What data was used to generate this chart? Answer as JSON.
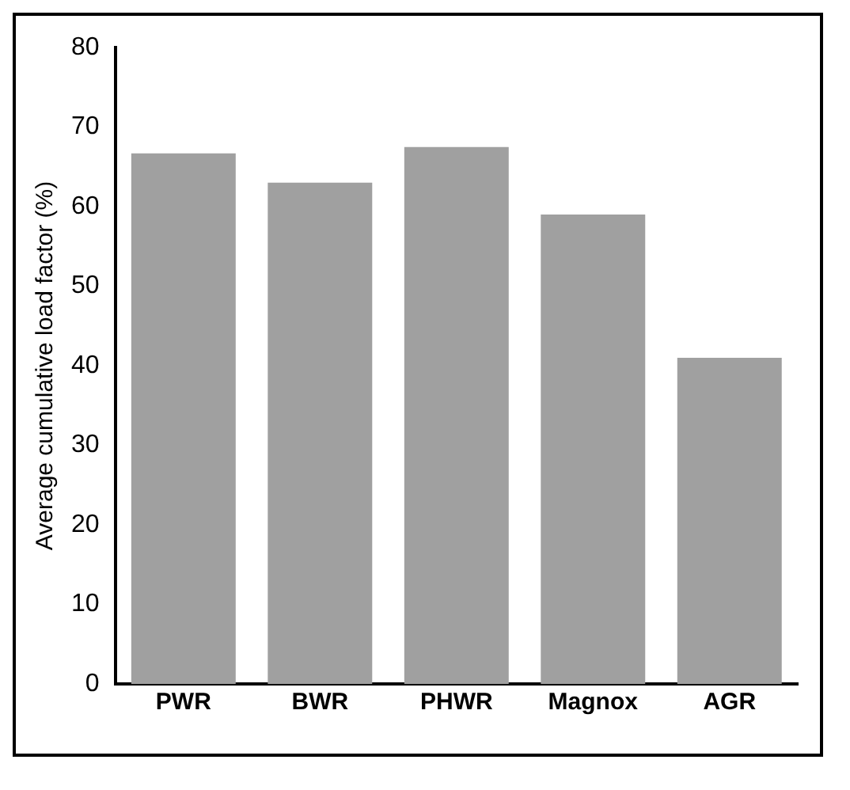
{
  "chart_data": {
    "type": "bar",
    "ylabel": "Average cumulative load factor (%)",
    "categories": [
      "PWR",
      "BWR",
      "PHWR",
      "Magnox",
      "AGR"
    ],
    "values": [
      66.7,
      63,
      67.5,
      59,
      41
    ],
    "color": "#a0a0a0",
    "ylim": [
      0,
      80
    ],
    "yticks": [
      0,
      10,
      20,
      30,
      40,
      50,
      60,
      70,
      80
    ],
    "grid": false,
    "legend": false
  }
}
